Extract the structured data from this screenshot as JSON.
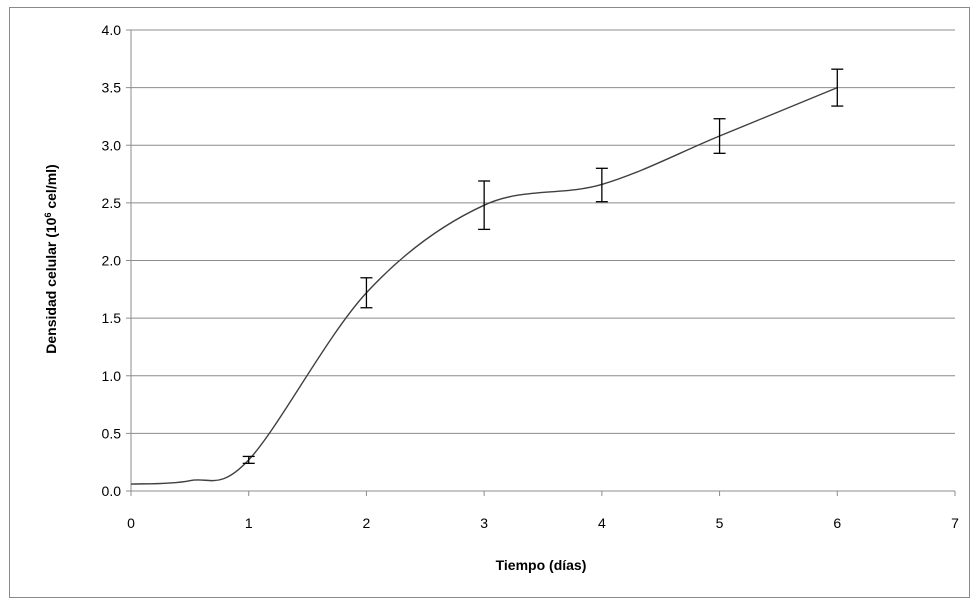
{
  "chart_data": {
    "type": "line",
    "title": "",
    "xlabel": "Tiempo (días)",
    "ylabel": {
      "prefix": "Densidad celular (10",
      "superscript": "6",
      "suffix": " cel/ml)"
    },
    "xlim": [
      0,
      7
    ],
    "ylim": [
      0,
      4
    ],
    "x_ticks": [
      "0",
      "1",
      "2",
      "3",
      "4",
      "5",
      "6",
      "7"
    ],
    "y_ticks": [
      "0.0",
      "0.5",
      "1.0",
      "1.5",
      "2.0",
      "2.5",
      "3.0",
      "3.5",
      "4.0"
    ],
    "grid": "horizontal",
    "legend": "none",
    "line_color": "#404040",
    "series": [
      {
        "x": [
          0,
          0.5,
          1,
          2,
          3,
          4,
          5,
          6
        ],
        "y": [
          0.06,
          0.09,
          0.27,
          1.72,
          2.48,
          2.66,
          3.08,
          3.5
        ],
        "error_bars": [
          {
            "x": 1,
            "low": 0.24,
            "high": 0.3
          },
          {
            "x": 2,
            "low": 1.59,
            "high": 1.85
          },
          {
            "x": 3,
            "low": 2.27,
            "high": 2.69
          },
          {
            "x": 4,
            "low": 2.51,
            "high": 2.8
          },
          {
            "x": 5,
            "low": 2.93,
            "high": 3.23
          },
          {
            "x": 6,
            "low": 3.34,
            "high": 3.66
          }
        ]
      }
    ]
  }
}
